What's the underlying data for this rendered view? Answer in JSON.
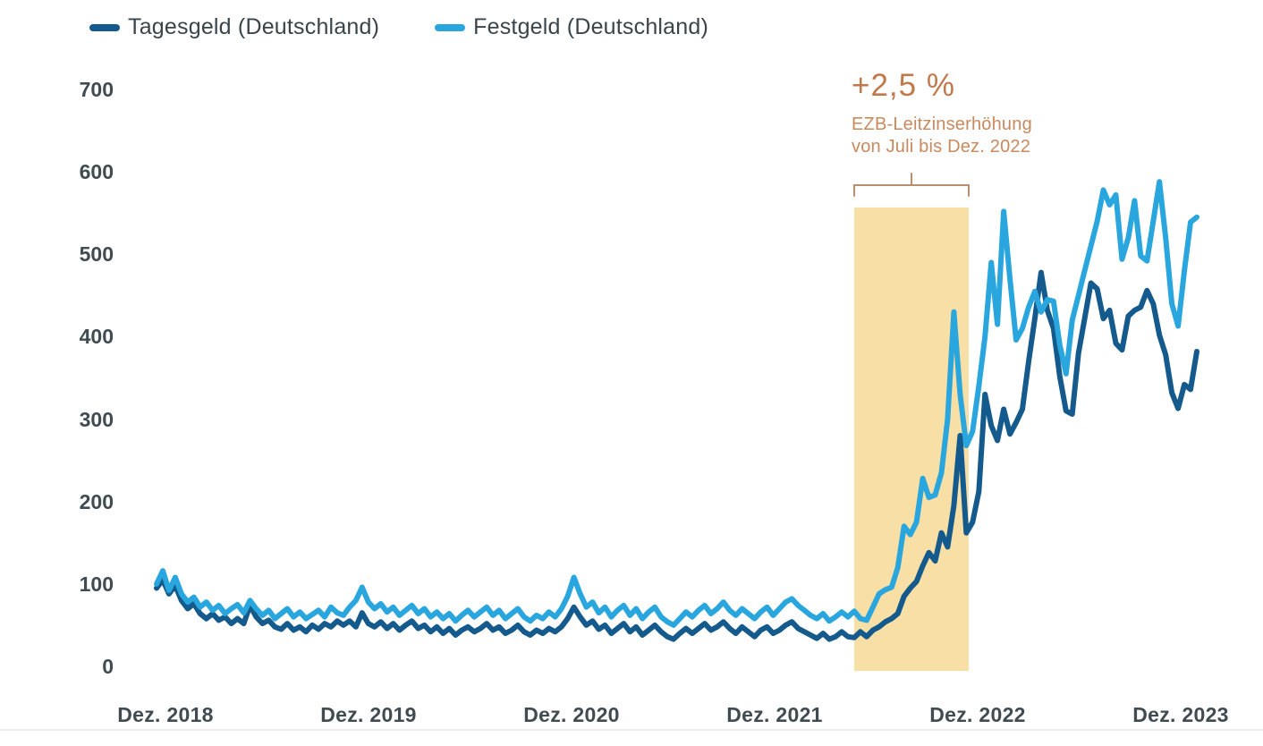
{
  "legend": {
    "items": [
      {
        "label": "Tagesgeld (Deutschland)",
        "color": "#155a8c"
      },
      {
        "label": "Festgeld (Deutschland)",
        "color": "#2aa6de"
      }
    ]
  },
  "annotation": {
    "headline": "+2,5 %",
    "line1": "EZB-Leitzinserhöhung",
    "line2": "von Juli bis Dez. 2022",
    "headline_color": "#c0794b",
    "body_color": "#c9895e",
    "bracket_color": "#b98e6e"
  },
  "chart_data": {
    "type": "line",
    "title": "",
    "xlabel": "",
    "ylabel": "",
    "x_labels": [
      "Dez. 2018",
      "Dez. 2019",
      "Dez. 2020",
      "Dez. 2021",
      "Dez. 2022",
      "Dez. 2023"
    ],
    "y_ticks": [
      0,
      100,
      200,
      300,
      400,
      500,
      600,
      700
    ],
    "ylim": [
      0,
      700
    ],
    "grid": false,
    "legend_position": "top-left",
    "axis_label_color": "#414b52",
    "highlight_band": {
      "label": "EZB-Leitzinserhöhung von Juli bis Dez. 2022",
      "x_start_label": "Juli 2022",
      "x_end_label": "Dez. 2022",
      "color": "#f8dfa6"
    },
    "series": [
      {
        "name": "Tagesgeld (Deutschland)",
        "color": "#155a8c",
        "values": [
          95,
          105,
          88,
          98,
          80,
          70,
          76,
          64,
          58,
          64,
          56,
          60,
          52,
          58,
          52,
          74,
          60,
          52,
          56,
          48,
          45,
          52,
          44,
          48,
          42,
          50,
          45,
          52,
          48,
          55,
          50,
          55,
          48,
          65,
          52,
          48,
          54,
          46,
          52,
          44,
          50,
          55,
          46,
          50,
          42,
          48,
          40,
          46,
          38,
          44,
          48,
          42,
          46,
          52,
          44,
          48,
          40,
          44,
          50,
          42,
          38,
          44,
          40,
          46,
          42,
          48,
          58,
          72,
          60,
          50,
          55,
          45,
          50,
          40,
          46,
          52,
          42,
          48,
          38,
          44,
          50,
          42,
          36,
          33,
          40,
          46,
          40,
          46,
          52,
          44,
          48,
          54,
          46,
          40,
          48,
          42,
          36,
          44,
          48,
          40,
          44,
          50,
          54,
          46,
          42,
          38,
          34,
          40,
          33,
          36,
          42,
          36,
          35,
          42,
          36,
          44,
          48,
          54,
          58,
          64,
          85,
          95,
          103,
          122,
          138,
          128,
          162,
          145,
          195,
          280,
          162,
          175,
          212,
          330,
          292,
          274,
          312,
          282,
          296,
          312,
          370,
          422,
          478,
          432,
          410,
          352,
          310,
          306,
          380,
          422,
          465,
          458,
          422,
          432,
          392,
          384,
          425,
          432,
          436,
          456,
          440,
          402,
          378,
          332,
          313,
          342,
          336,
          382
        ]
      },
      {
        "name": "Festgeld (Deutschland)",
        "color": "#2aa6de",
        "values": [
          100,
          116,
          92,
          108,
          88,
          78,
          84,
          72,
          78,
          68,
          74,
          64,
          70,
          75,
          65,
          80,
          70,
          62,
          68,
          58,
          64,
          70,
          60,
          66,
          58,
          63,
          68,
          60,
          72,
          65,
          62,
          72,
          80,
          96,
          78,
          70,
          76,
          66,
          72,
          62,
          68,
          74,
          64,
          70,
          60,
          66,
          58,
          64,
          55,
          62,
          68,
          60,
          66,
          72,
          62,
          68,
          58,
          64,
          70,
          60,
          55,
          62,
          58,
          66,
          60,
          70,
          85,
          108,
          88,
          72,
          78,
          65,
          72,
          60,
          68,
          74,
          62,
          70,
          58,
          66,
          72,
          60,
          54,
          50,
          58,
          66,
          60,
          68,
          74,
          64,
          70,
          78,
          68,
          62,
          70,
          64,
          58,
          66,
          72,
          62,
          70,
          78,
          82,
          74,
          68,
          62,
          58,
          64,
          55,
          60,
          66,
          60,
          67,
          58,
          56,
          72,
          88,
          93,
          96,
          120,
          170,
          160,
          175,
          228,
          205,
          208,
          235,
          300,
          430,
          330,
          268,
          285,
          340,
          400,
          490,
          415,
          552,
          470,
          396,
          410,
          436,
          455,
          430,
          445,
          443,
          390,
          355,
          420,
          450,
          480,
          510,
          540,
          578,
          560,
          572,
          494,
          520,
          565,
          498,
          492,
          540,
          588,
          520,
          440,
          413,
          480,
          539,
          545
        ]
      }
    ]
  }
}
